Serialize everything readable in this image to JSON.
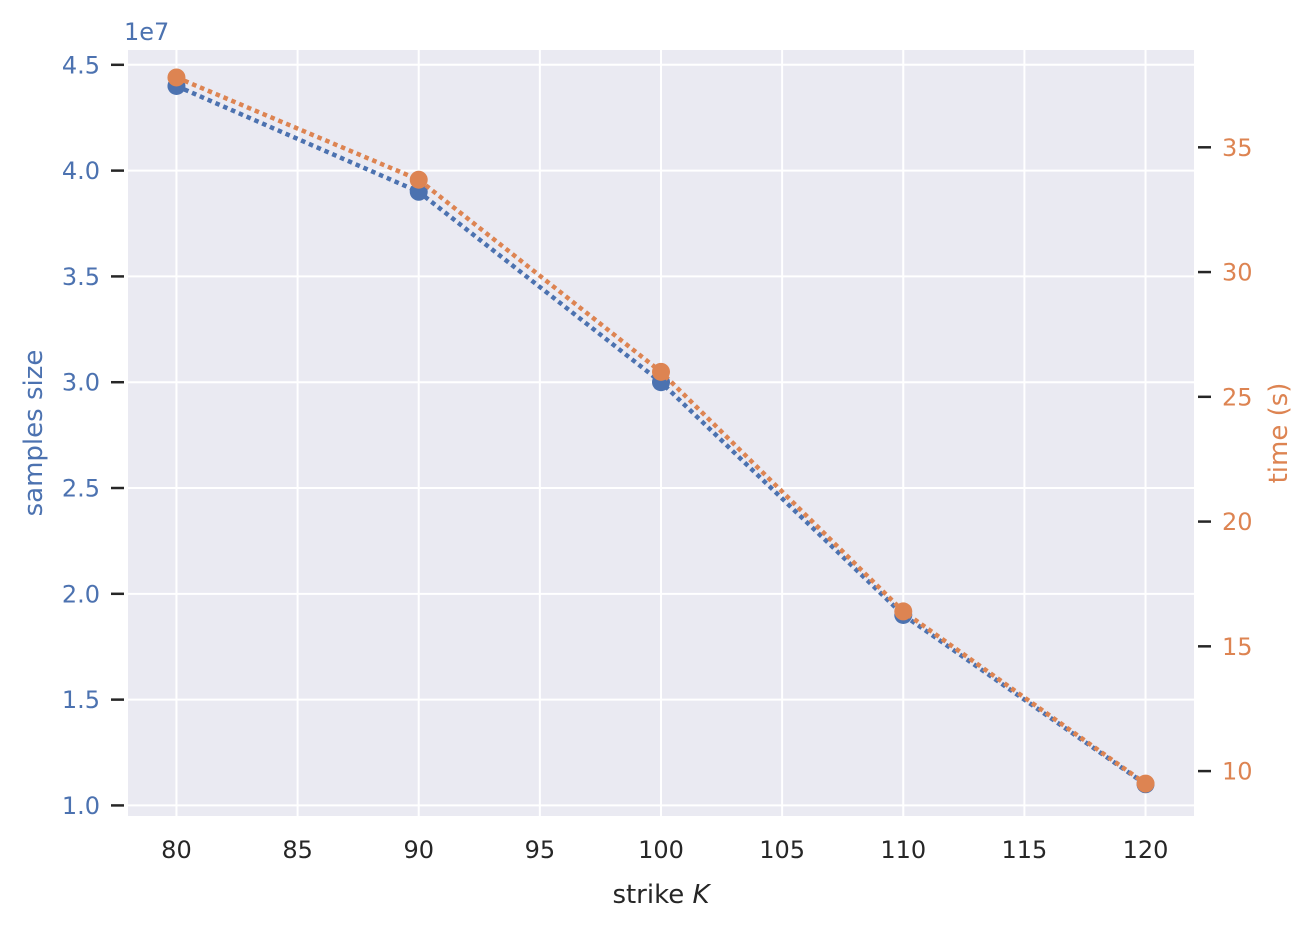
{
  "chart_data": {
    "type": "line",
    "xlabel": "strike",
    "xlabel_var": "K",
    "x": [
      80,
      90,
      100,
      110,
      120
    ],
    "xlim": [
      78,
      122
    ],
    "x_ticks": [
      80,
      85,
      90,
      95,
      100,
      105,
      110,
      115,
      120
    ],
    "left_axis": {
      "label": "samples size",
      "offset_text": "1e7",
      "ylim": [
        0.95,
        4.57
      ],
      "ticks": [
        "1.0",
        "1.5",
        "2.0",
        "2.5",
        "3.0",
        "3.5",
        "4.0",
        "4.5"
      ],
      "color": "#4c72b0"
    },
    "right_axis": {
      "label": "time (s)",
      "ylim": [
        8.2,
        38.9
      ],
      "ticks": [
        "10",
        "15",
        "20",
        "25",
        "30",
        "35"
      ],
      "color": "#dd8452"
    },
    "series": [
      {
        "axis": "left",
        "values": [
          4.4,
          3.9,
          3.0,
          1.9,
          1.1
        ],
        "color": "#4c72b0",
        "linestyle": "dotted",
        "marker": "o"
      },
      {
        "axis": "right",
        "values": [
          37.8,
          33.7,
          26.0,
          16.4,
          9.5
        ],
        "color": "#dd8452",
        "linestyle": "dotted",
        "marker": "o"
      }
    ],
    "grid": true,
    "background": "#eaeaf2"
  }
}
